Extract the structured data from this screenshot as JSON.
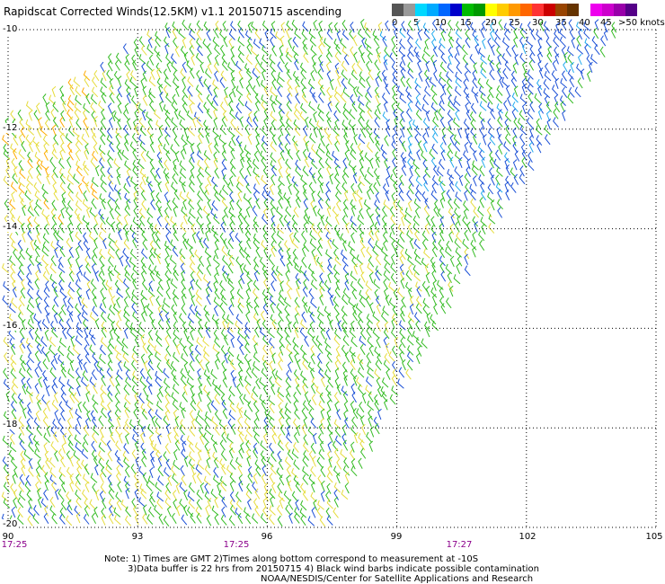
{
  "title": "Rapidscat Corrected Winds(12.5KM) v1.1 20150715 ascending",
  "legend": {
    "colors": [
      "#555555",
      "#999999",
      "#00d8ff",
      "#00aaff",
      "#0066ff",
      "#0000cc",
      "#00bb00",
      "#009900",
      "#ffff00",
      "#ffcc00",
      "#ff9900",
      "#ff6600",
      "#ff3333",
      "#cc0000",
      "#994400",
      "#663300",
      "#ffffff",
      "#ee00ee",
      "#cc00cc",
      "#9900aa",
      "#550088"
    ],
    "tick_labels": [
      "0",
      "5",
      "10",
      "15",
      "20",
      "25",
      "30",
      "35",
      "40",
      "45",
      ">50 knots"
    ]
  },
  "axes": {
    "lat_labels": [
      "-10",
      "-12",
      "-14",
      "-16",
      "-18",
      "-20"
    ],
    "lon_labels": [
      "90",
      "93",
      "96",
      "99",
      "102",
      "105"
    ],
    "time_labels": [
      "17:25",
      "17:25",
      "17:27"
    ]
  },
  "notes": [
    "Note: 1) Times are GMT 2)Times along bottom correspond to measurement at -10S",
    "3)Data buffer is 22 hrs from 20150715 4) Black wind barbs indicate possible contamination",
    "NOAA/NESDIS/Center for Satellite Applications and Research"
  ],
  "map_data": {
    "lon_range": [
      90,
      105
    ],
    "lat_range": [
      -20,
      -10
    ],
    "swath_polygon_lonlat": [
      [
        90.0,
        -11.9
      ],
      [
        93.9,
        -9.9
      ],
      [
        104.3,
        -9.9
      ],
      [
        100.8,
        -14.8
      ],
      [
        98.7,
        -18.0
      ],
      [
        97.6,
        -20.0
      ],
      [
        90.0,
        -20.0
      ]
    ],
    "speed_colors": {
      "yellow": "#e6dc3c",
      "green": "#33bb22",
      "blue": "#1a4fd6",
      "cyan": "#22aaee",
      "orange": "#ffaa00"
    }
  }
}
